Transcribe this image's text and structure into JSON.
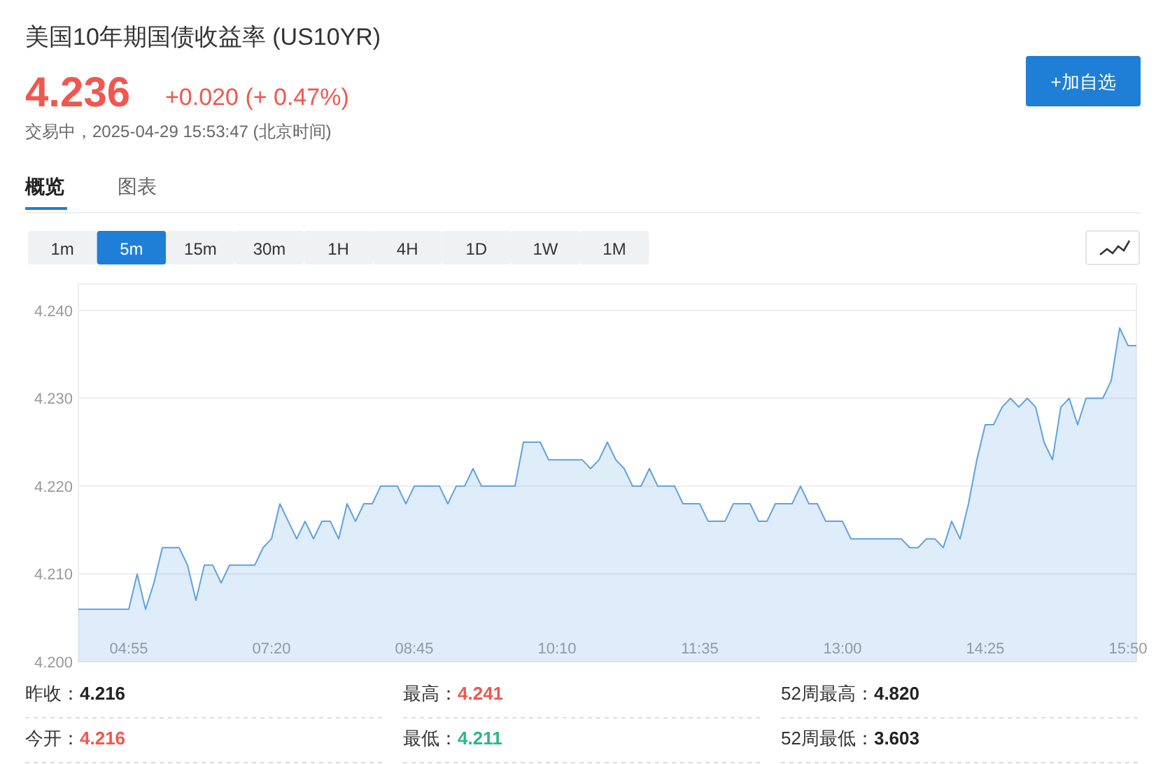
{
  "chart_data": {
    "type": "area",
    "title": "美国10年期国债收益率 (US10YR)",
    "categories": [
      null,
      null,
      null,
      null,
      null,
      null,
      "04:55",
      null,
      null,
      null,
      null,
      null,
      null,
      null,
      null,
      null,
      null,
      null,
      null,
      null,
      null,
      null,
      null,
      "07:20",
      null,
      null,
      null,
      null,
      null,
      null,
      null,
      null,
      null,
      null,
      null,
      null,
      null,
      null,
      null,
      null,
      "08:45",
      null,
      null,
      null,
      null,
      null,
      null,
      null,
      null,
      null,
      null,
      null,
      null,
      null,
      null,
      null,
      null,
      "10:10",
      null,
      null,
      null,
      null,
      null,
      null,
      null,
      null,
      null,
      null,
      null,
      null,
      null,
      null,
      null,
      null,
      "11:35",
      null,
      null,
      null,
      null,
      null,
      null,
      null,
      null,
      null,
      null,
      null,
      null,
      null,
      null,
      null,
      null,
      "13:00",
      null,
      null,
      null,
      null,
      null,
      null,
      null,
      null,
      null,
      null,
      null,
      null,
      null,
      null,
      null,
      null,
      "14:25",
      null,
      null,
      null,
      null,
      null,
      null,
      null,
      null,
      null,
      null,
      null,
      null,
      null,
      null,
      null,
      null,
      "15:50",
      null
    ],
    "series": [
      {
        "color": "#5fa2e0",
        "values": [
          4.206,
          4.206,
          4.206,
          4.206,
          4.206,
          4.206,
          4.206,
          4.21,
          4.206,
          4.209,
          4.213,
          4.213,
          4.213,
          4.211,
          4.207,
          4.211,
          4.211,
          4.209,
          4.211,
          4.211,
          4.211,
          4.211,
          4.213,
          4.214,
          4.218,
          4.216,
          4.214,
          4.216,
          4.214,
          4.216,
          4.216,
          4.214,
          4.218,
          4.216,
          4.218,
          4.218,
          4.22,
          4.22,
          4.22,
          4.218,
          4.22,
          4.22,
          4.22,
          4.22,
          4.218,
          4.22,
          4.22,
          4.222,
          4.22,
          4.22,
          4.22,
          4.22,
          4.22,
          4.225,
          4.225,
          4.225,
          4.223,
          4.223,
          4.223,
          4.223,
          4.223,
          4.222,
          4.223,
          4.225,
          4.223,
          4.222,
          4.22,
          4.22,
          4.222,
          4.22,
          4.22,
          4.22,
          4.218,
          4.218,
          4.218,
          4.216,
          4.216,
          4.216,
          4.218,
          4.218,
          4.218,
          4.216,
          4.216,
          4.218,
          4.218,
          4.218,
          4.22,
          4.218,
          4.218,
          4.216,
          4.216,
          4.216,
          4.214,
          4.214,
          4.214,
          4.214,
          4.214,
          4.214,
          4.214,
          4.213,
          4.213,
          4.214,
          4.214,
          4.213,
          4.216,
          4.214,
          4.218,
          4.223,
          4.227,
          4.227,
          4.229,
          4.23,
          4.229,
          4.23,
          4.229,
          4.225,
          4.223,
          4.229,
          4.23,
          4.227,
          4.23,
          4.23,
          4.23,
          4.232,
          4.238,
          4.236,
          4.236
        ]
      }
    ],
    "ylim": [
      4.2,
      4.243
    ],
    "yticks": [
      {
        "value": 4.2,
        "label": "4.200"
      },
      {
        "value": 4.21,
        "label": "4.210"
      },
      {
        "value": 4.22,
        "label": "4.220"
      },
      {
        "value": 4.23,
        "label": "4.230"
      },
      {
        "value": 4.24,
        "label": "4.240"
      }
    ],
    "grid": "y",
    "annotations": [
      "4.236",
      "+0.020 (+ 0.47%)",
      "交易中，2025-04-29 15:53:47 (北京时间)",
      "概览",
      "图表",
      "+加自选",
      "1m",
      "5m",
      "15m",
      "30m",
      "1H",
      "4H",
      "1D",
      "1W",
      "1M",
      "昨收：4.216",
      "最高：4.241",
      "52周最高：4.820",
      "今开：4.216",
      "最低：4.211",
      "52周最低：3.603"
    ]
  }
}
